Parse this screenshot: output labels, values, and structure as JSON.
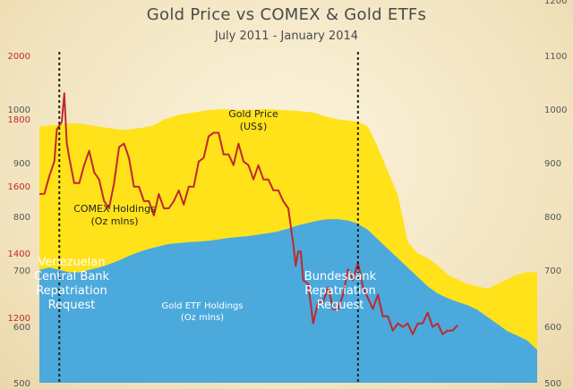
{
  "chart_data": {
    "type": "area",
    "title": "Gold Price vs COMEX & Gold ETFs",
    "subtitle": "July 2011 - January 2014",
    "axes": {
      "left_outer": {
        "ticks": [
          500,
          600,
          700,
          800,
          900,
          1000
        ],
        "color": "#555555"
      },
      "left_inner": {
        "ticks": [
          1200,
          1400,
          1600,
          1800,
          2000
        ],
        "color": "#c0282d"
      },
      "right": {
        "ticks": [
          500,
          600,
          700,
          800,
          900,
          1000,
          1100,
          1200
        ],
        "color": "#555555"
      }
    },
    "series": [
      {
        "name": "COMEX Holdings (Oz mlns)",
        "kind": "stacked-area-top",
        "color": "#ffe21a",
        "points": [
          [
            0,
            1045
          ],
          [
            0.03,
            1048
          ],
          [
            0.06,
            1052
          ],
          [
            0.09,
            1050
          ],
          [
            0.12,
            1045
          ],
          [
            0.15,
            1040
          ],
          [
            0.17,
            1038
          ],
          [
            0.19,
            1040
          ],
          [
            0.21,
            1043
          ],
          [
            0.23,
            1048
          ],
          [
            0.25,
            1060
          ],
          [
            0.28,
            1070
          ],
          [
            0.31,
            1075
          ],
          [
            0.34,
            1080
          ],
          [
            0.37,
            1082
          ],
          [
            0.4,
            1080
          ],
          [
            0.43,
            1081
          ],
          [
            0.46,
            1082
          ],
          [
            0.49,
            1080
          ],
          [
            0.52,
            1078
          ],
          [
            0.55,
            1075
          ],
          [
            0.58,
            1065
          ],
          [
            0.6,
            1060
          ],
          [
            0.62,
            1058
          ],
          [
            0.64,
            1055
          ],
          [
            0.66,
            1045
          ],
          [
            0.68,
            1000
          ],
          [
            0.7,
            950
          ],
          [
            0.72,
            900
          ],
          [
            0.74,
            800
          ],
          [
            0.76,
            775
          ],
          [
            0.78,
            765
          ],
          [
            0.8,
            750
          ],
          [
            0.82,
            730
          ],
          [
            0.84,
            720
          ],
          [
            0.86,
            710
          ],
          [
            0.88,
            705
          ],
          [
            0.9,
            700
          ],
          [
            0.92,
            710
          ],
          [
            0.94,
            720
          ],
          [
            0.96,
            730
          ],
          [
            0.98,
            735
          ],
          [
            1,
            735
          ]
        ]
      },
      {
        "name": "Gold ETF Holdings (Oz mlns)",
        "kind": "area",
        "color": "#4ba9dc",
        "points": [
          [
            0,
            740
          ],
          [
            0.02,
            745
          ],
          [
            0.04,
            740
          ],
          [
            0.06,
            735
          ],
          [
            0.08,
            735
          ],
          [
            0.1,
            740
          ],
          [
            0.12,
            745
          ],
          [
            0.14,
            752
          ],
          [
            0.16,
            760
          ],
          [
            0.18,
            770
          ],
          [
            0.2,
            778
          ],
          [
            0.22,
            785
          ],
          [
            0.24,
            790
          ],
          [
            0.26,
            795
          ],
          [
            0.28,
            797
          ],
          [
            0.3,
            799
          ],
          [
            0.32,
            800
          ],
          [
            0.34,
            802
          ],
          [
            0.36,
            805
          ],
          [
            0.38,
            808
          ],
          [
            0.4,
            810
          ],
          [
            0.42,
            812
          ],
          [
            0.44,
            815
          ],
          [
            0.46,
            818
          ],
          [
            0.48,
            822
          ],
          [
            0.5,
            828
          ],
          [
            0.52,
            835
          ],
          [
            0.54,
            840
          ],
          [
            0.56,
            845
          ],
          [
            0.58,
            848
          ],
          [
            0.6,
            848
          ],
          [
            0.62,
            845
          ],
          [
            0.64,
            838
          ],
          [
            0.66,
            825
          ],
          [
            0.68,
            805
          ],
          [
            0.7,
            785
          ],
          [
            0.72,
            765
          ],
          [
            0.74,
            745
          ],
          [
            0.76,
            725
          ],
          [
            0.78,
            705
          ],
          [
            0.8,
            690
          ],
          [
            0.82,
            680
          ],
          [
            0.84,
            672
          ],
          [
            0.86,
            665
          ],
          [
            0.88,
            655
          ],
          [
            0.9,
            640
          ],
          [
            0.92,
            625
          ],
          [
            0.94,
            610
          ],
          [
            0.96,
            600
          ],
          [
            0.98,
            590
          ],
          [
            1,
            570
          ]
        ]
      },
      {
        "name": "Gold Price (US$)",
        "kind": "line",
        "color": "#c0282d",
        "points": [
          [
            0,
            1600
          ],
          [
            0.01,
            1620
          ],
          [
            0.02,
            1650
          ],
          [
            0.03,
            1710
          ],
          [
            0.035,
            1780
          ],
          [
            0.045,
            1820
          ],
          [
            0.05,
            1880
          ],
          [
            0.055,
            1760
          ],
          [
            0.06,
            1700
          ],
          [
            0.07,
            1650
          ],
          [
            0.08,
            1630
          ],
          [
            0.09,
            1700
          ],
          [
            0.1,
            1720
          ],
          [
            0.11,
            1680
          ],
          [
            0.12,
            1640
          ],
          [
            0.13,
            1600
          ],
          [
            0.14,
            1560
          ],
          [
            0.15,
            1650
          ],
          [
            0.16,
            1730
          ],
          [
            0.17,
            1760
          ],
          [
            0.18,
            1700
          ],
          [
            0.19,
            1640
          ],
          [
            0.2,
            1620
          ],
          [
            0.21,
            1600
          ],
          [
            0.22,
            1580
          ],
          [
            0.23,
            1560
          ],
          [
            0.24,
            1600
          ],
          [
            0.25,
            1580
          ],
          [
            0.26,
            1560
          ],
          [
            0.27,
            1600
          ],
          [
            0.28,
            1610
          ],
          [
            0.29,
            1590
          ],
          [
            0.3,
            1620
          ],
          [
            0.31,
            1640
          ],
          [
            0.32,
            1690
          ],
          [
            0.33,
            1720
          ],
          [
            0.34,
            1760
          ],
          [
            0.35,
            1790
          ],
          [
            0.36,
            1770
          ],
          [
            0.37,
            1730
          ],
          [
            0.38,
            1710
          ],
          [
            0.39,
            1700
          ],
          [
            0.4,
            1740
          ],
          [
            0.41,
            1710
          ],
          [
            0.42,
            1680
          ],
          [
            0.43,
            1660
          ],
          [
            0.44,
            1680
          ],
          [
            0.45,
            1660
          ],
          [
            0.46,
            1640
          ],
          [
            0.47,
            1630
          ],
          [
            0.48,
            1610
          ],
          [
            0.49,
            1600
          ],
          [
            0.5,
            1560
          ],
          [
            0.51,
            1480
          ],
          [
            0.515,
            1400
          ],
          [
            0.52,
            1460
          ],
          [
            0.525,
            1440
          ],
          [
            0.53,
            1380
          ],
          [
            0.54,
            1350
          ],
          [
            0.55,
            1260
          ],
          [
            0.56,
            1300
          ],
          [
            0.57,
            1320
          ],
          [
            0.58,
            1340
          ],
          [
            0.59,
            1300
          ],
          [
            0.6,
            1280
          ],
          [
            0.61,
            1340
          ],
          [
            0.62,
            1390
          ],
          [
            0.63,
            1380
          ],
          [
            0.64,
            1410
          ],
          [
            0.65,
            1360
          ],
          [
            0.66,
            1310
          ],
          [
            0.67,
            1300
          ],
          [
            0.68,
            1320
          ],
          [
            0.69,
            1280
          ],
          [
            0.7,
            1260
          ],
          [
            0.71,
            1240
          ],
          [
            0.72,
            1240
          ],
          [
            0.73,
            1250
          ],
          [
            0.74,
            1240
          ],
          [
            0.75,
            1230
          ],
          [
            0.76,
            1240
          ],
          [
            0.77,
            1260
          ],
          [
            0.78,
            1270
          ],
          [
            0.79,
            1250
          ],
          [
            0.8,
            1240
          ],
          [
            0.81,
            1230
          ],
          [
            0.82,
            1220
          ],
          [
            0.83,
            1240
          ],
          [
            0.84,
            1235
          ]
        ]
      }
    ],
    "annotations": [
      {
        "text": "Venezuelan Central Bank Repatriation Request",
        "x": 0.04
      },
      {
        "text": "Bundesbank Repatriation Request",
        "x": 0.64
      }
    ],
    "labels": {
      "gold_price": [
        "Gold Price",
        "(US$)"
      ],
      "comex": [
        "COMEX Holdings",
        "(Oz mlns)"
      ],
      "etf": [
        "Gold ETF Holdings",
        "(Oz mlns)"
      ],
      "venezuela": [
        "Venezuelan",
        "Central Bank",
        "Repatriation",
        "Request"
      ],
      "bundesbank": [
        "Bundesbank",
        "Repatriation",
        "Request"
      ]
    }
  }
}
